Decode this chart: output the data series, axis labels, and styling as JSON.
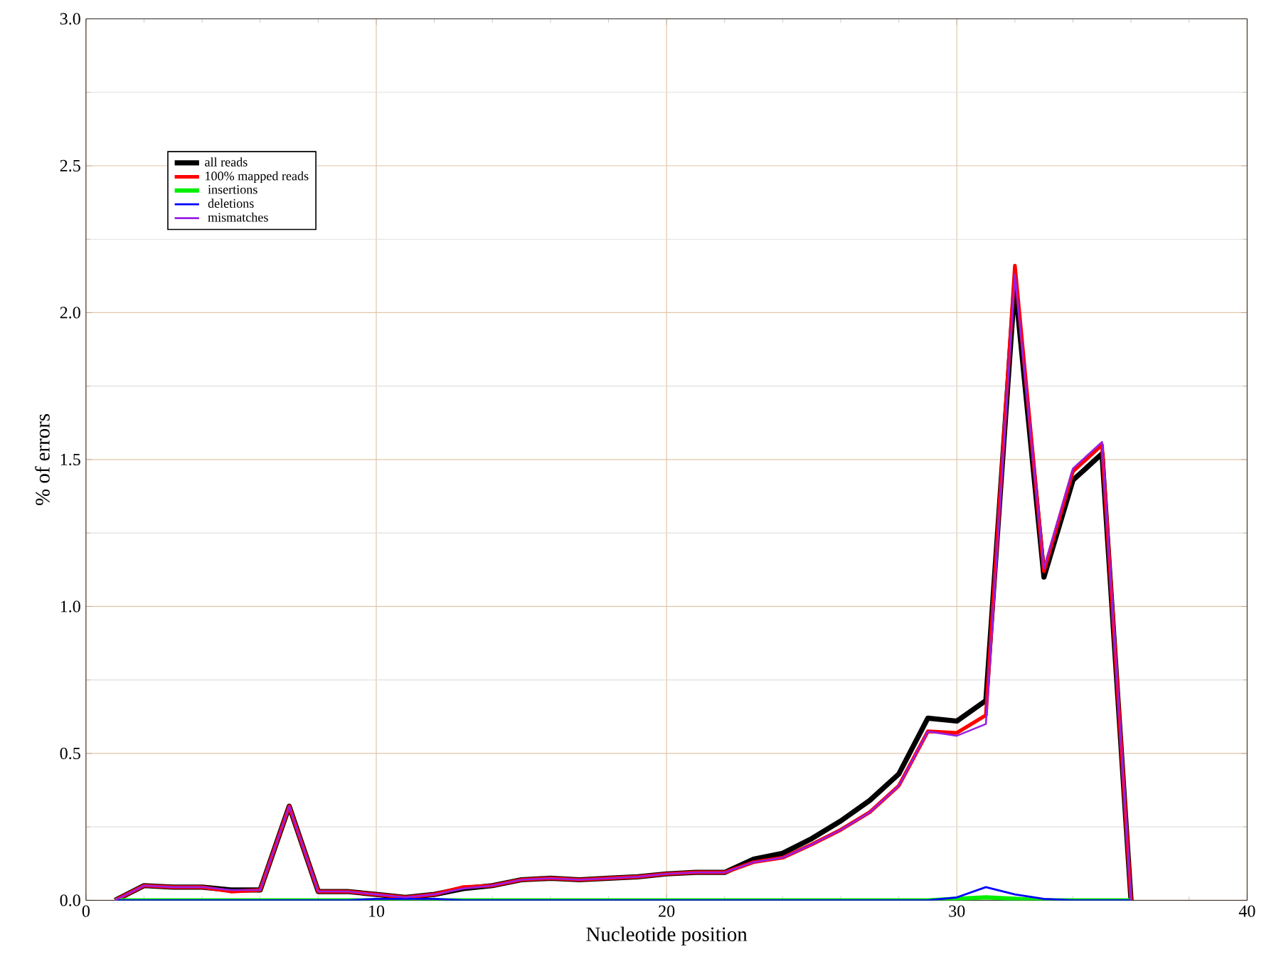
{
  "chart_data": {
    "type": "line",
    "xlabel": "Nucleotide position",
    "ylabel": "% of errors",
    "x": [
      1,
      2,
      3,
      4,
      5,
      6,
      7,
      8,
      9,
      10,
      11,
      12,
      13,
      14,
      15,
      16,
      17,
      18,
      19,
      20,
      21,
      22,
      23,
      24,
      25,
      26,
      27,
      28,
      29,
      30,
      31,
      32,
      33,
      34,
      35,
      36
    ],
    "series": [
      {
        "name": "all reads",
        "color": "#000000",
        "values": [
          0,
          0.05,
          0.045,
          0.045,
          0.035,
          0.035,
          0.32,
          0.03,
          0.03,
          0.02,
          0.01,
          0.02,
          0.04,
          0.05,
          0.07,
          0.075,
          0.07,
          0.075,
          0.08,
          0.09,
          0.095,
          0.095,
          0.14,
          0.16,
          0.21,
          0.27,
          0.34,
          0.43,
          0.62,
          0.61,
          0.68,
          2.1,
          1.1,
          1.43,
          1.52,
          0
        ]
      },
      {
        "name": "100% mapped reads",
        "color": "#ff0000",
        "values": [
          0,
          0.05,
          0.045,
          0.045,
          0.03,
          0.035,
          0.32,
          0.03,
          0.03,
          0.02,
          0.01,
          0.02,
          0.045,
          0.05,
          0.07,
          0.075,
          0.07,
          0.075,
          0.08,
          0.09,
          0.095,
          0.095,
          0.13,
          0.145,
          0.19,
          0.24,
          0.3,
          0.39,
          0.575,
          0.57,
          0.63,
          2.16,
          1.12,
          1.46,
          1.55,
          0
        ]
      },
      {
        "name": "   insertions",
        "color": "#00ee00",
        "values": [
          0,
          0,
          0,
          0,
          0,
          0,
          0,
          0,
          0,
          0,
          0,
          0,
          0,
          0,
          0,
          0,
          0,
          0,
          0,
          0,
          0,
          0,
          0,
          0,
          0,
          0,
          0,
          0,
          0,
          0.005,
          0.01,
          0.005,
          0,
          0,
          0,
          0
        ]
      },
      {
        "name": "   deletions",
        "color": "#0000ff",
        "values": [
          0,
          0,
          0,
          0,
          0,
          0,
          0,
          0,
          0,
          0.005,
          0.005,
          0.005,
          0,
          0,
          0,
          0,
          0,
          0,
          0,
          0,
          0,
          0,
          0,
          0,
          0,
          0,
          0,
          0,
          0,
          0.01,
          0.045,
          0.02,
          0.005,
          0,
          0,
          0
        ]
      },
      {
        "name": "   mismatches",
        "color": "#9a1ee6",
        "values": [
          0,
          0.05,
          0.045,
          0.045,
          0.035,
          0.035,
          0.32,
          0.03,
          0.03,
          0.02,
          0.01,
          0.02,
          0.04,
          0.05,
          0.07,
          0.075,
          0.07,
          0.075,
          0.08,
          0.09,
          0.095,
          0.095,
          0.13,
          0.145,
          0.19,
          0.24,
          0.3,
          0.39,
          0.575,
          0.56,
          0.6,
          2.13,
          1.13,
          1.47,
          1.56,
          0
        ]
      }
    ],
    "xlim": [
      0,
      40
    ],
    "ylim": [
      0,
      3
    ],
    "xticks": [
      0,
      10,
      20,
      30,
      40
    ],
    "yticks": [
      {
        "value": 0,
        "label": "0.0"
      },
      {
        "value": 0.5,
        "label": "0.5"
      },
      {
        "value": 1,
        "label": "1.0"
      },
      {
        "value": 1.5,
        "label": "1.5"
      },
      {
        "value": 2,
        "label": "2.0"
      },
      {
        "value": 2.5,
        "label": "2.5"
      },
      {
        "value": 3,
        "label": "3.0"
      }
    ],
    "grid": true,
    "legend": "top left",
    "marker": "none",
    "line_style": "solid"
  }
}
